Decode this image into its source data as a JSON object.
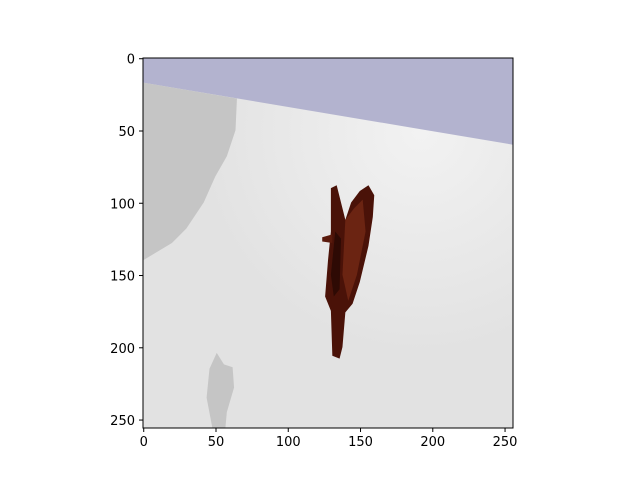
{
  "chart_data": {
    "type": "image",
    "xlim": [
      -0.5,
      255.5
    ],
    "ylim": [
      255.5,
      -0.5
    ],
    "xticks": [
      0,
      50,
      100,
      150,
      200,
      250
    ],
    "yticks": [
      0,
      50,
      100,
      150,
      200,
      250
    ]
  }
}
